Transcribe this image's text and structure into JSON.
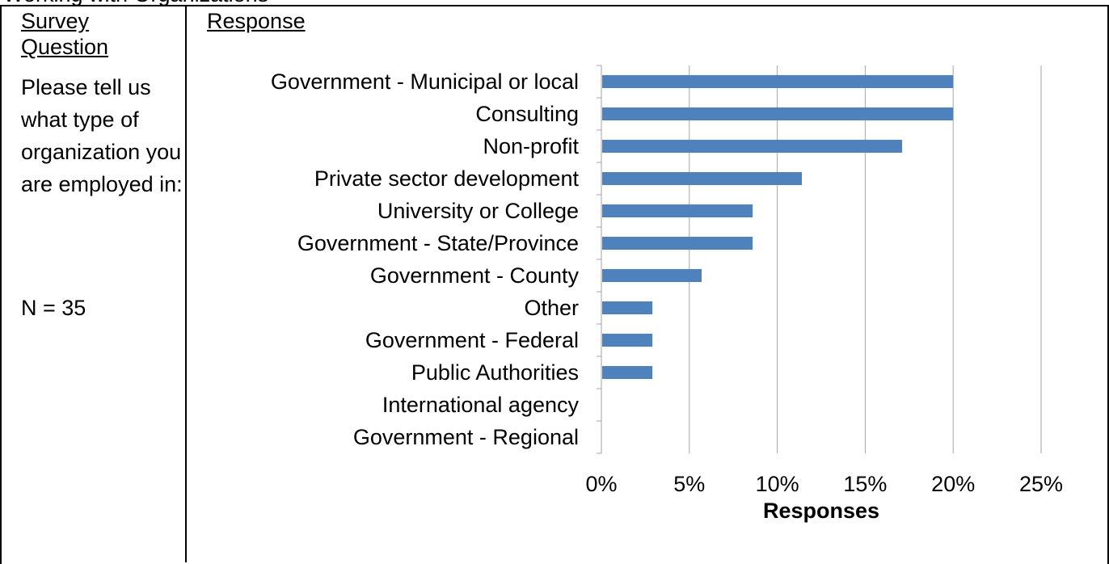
{
  "top_cutoff_text": "Working with Organizations",
  "table": {
    "col1_header": "Survey Question",
    "col2_header": "Response",
    "question": "Please tell us what type of organization you are employed in:",
    "n_label": "N = 35"
  },
  "chart_data": {
    "type": "bar",
    "orientation": "horizontal",
    "categories": [
      "Government - Municipal or local",
      "Consulting",
      "Non-profit",
      "Private sector development",
      "University or College",
      "Government - State/Province",
      "Government - County",
      "Other",
      "Government - Federal",
      "Public Authorities",
      "International agency",
      "Government - Regional"
    ],
    "values": [
      20,
      20,
      17.1,
      11.4,
      8.6,
      8.6,
      5.7,
      2.9,
      2.9,
      2.9,
      0,
      0
    ],
    "xlabel": "Responses",
    "ylabel": "",
    "xlim": [
      0,
      25
    ],
    "xticks": [
      "0%",
      "5%",
      "10%",
      "15%",
      "20%",
      "25%"
    ],
    "grid": true,
    "bar_color": "#4f81bd",
    "grid_color": "#a6a6a6"
  }
}
